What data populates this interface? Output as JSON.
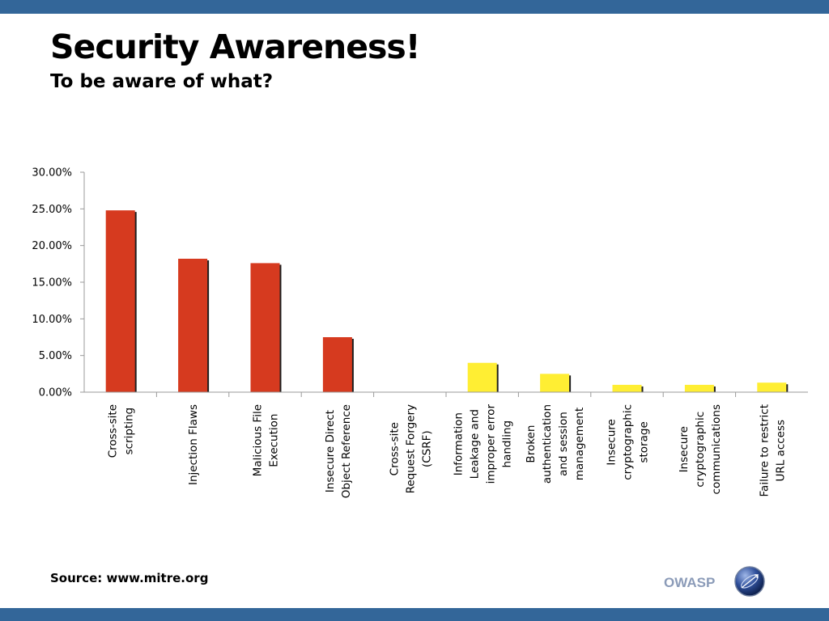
{
  "slide": {
    "title": "Security Awareness!",
    "subtitle": "To be aware of what?",
    "source": "Source: www.mitre.org",
    "logo_text": "OWASP",
    "logo_icon": "owasp-globe-icon"
  },
  "colors": {
    "bar_band": "#336699",
    "bar_red": "#d63a1f",
    "bar_yellow": "#ffee33",
    "bar_shadow": "#1e1e1e",
    "axis": "#9a9a9a"
  },
  "chart_data": {
    "type": "bar",
    "title": "",
    "xlabel": "",
    "ylabel": "",
    "ylim": [
      0,
      30
    ],
    "yticks": [
      "0.00%",
      "5.00%",
      "10.00%",
      "15.00%",
      "20.00%",
      "25.00%",
      "30.00%"
    ],
    "grid": false,
    "legend": "none",
    "categories": [
      [
        "Cross-site",
        "scripting"
      ],
      [
        "Injection Flaws"
      ],
      [
        "Malicious File",
        "Execution"
      ],
      [
        "Insecure Direct",
        "Object Reference"
      ],
      [
        "Cross-site",
        "Request Forgery",
        "(CSRF)"
      ],
      [
        "Information",
        "Leakage and",
        "improper error",
        "handling"
      ],
      [
        "Broken",
        "authentication",
        "and session",
        "management"
      ],
      [
        "Insecure",
        "cryptographic",
        "storage"
      ],
      [
        "Insecure",
        "cryptographic",
        "communications"
      ],
      [
        "Failure to restrict",
        "URL access"
      ]
    ],
    "values": [
      24.8,
      18.2,
      17.6,
      7.5,
      0.0,
      4.0,
      2.5,
      1.0,
      1.0,
      1.3
    ],
    "bar_colors": [
      "#d63a1f",
      "#d63a1f",
      "#d63a1f",
      "#d63a1f",
      "#d63a1f",
      "#ffee33",
      "#ffee33",
      "#ffee33",
      "#ffee33",
      "#ffee33"
    ]
  }
}
